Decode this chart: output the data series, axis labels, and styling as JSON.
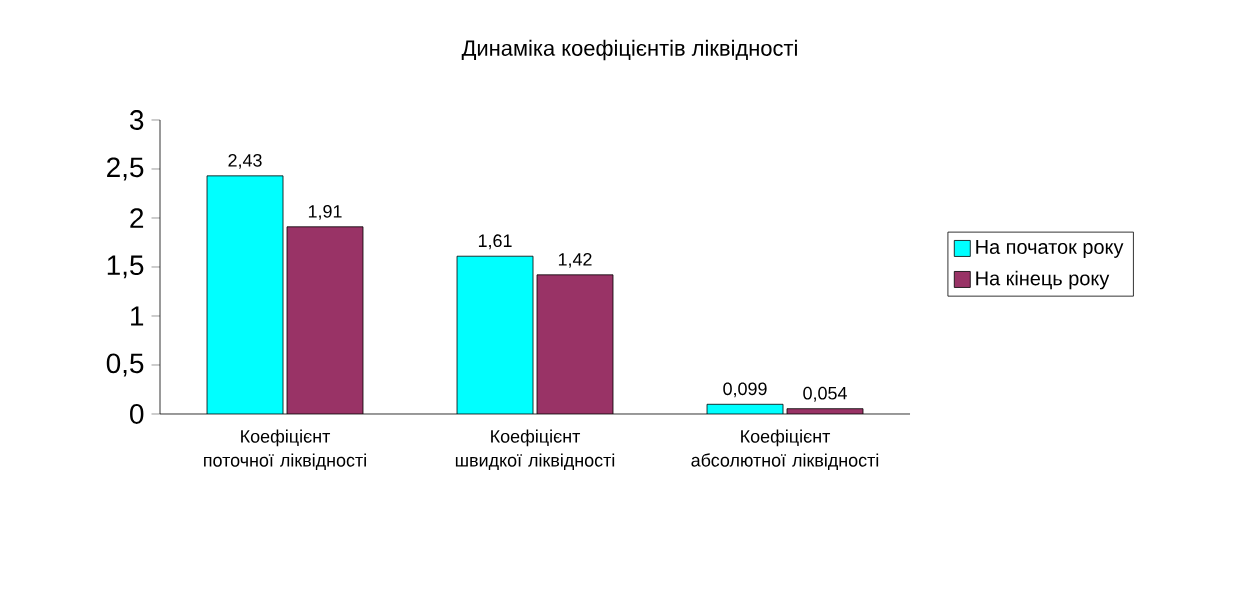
{
  "chart_data": {
    "type": "bar",
    "title": "Динаміка коефіцієнтів ліквідності",
    "categories": [
      "Коефіцієнт поточної ліквідності",
      "Коефіцієнт швидкої ліквідності",
      "Коефіцієнт абсолютної ліквідності"
    ],
    "series": [
      {
        "name": "На початок року",
        "color": "#00ffff",
        "values": [
          2.43,
          1.61,
          0.099
        ],
        "value_labels": [
          "2,43",
          "1,61",
          "0,099"
        ]
      },
      {
        "name": "На кінець року",
        "color": "#993366",
        "values": [
          1.91,
          1.42,
          0.054
        ],
        "value_labels": [
          "1,91",
          "1,42",
          "0,054"
        ]
      }
    ],
    "ylim": [
      0,
      3
    ],
    "yticks": [
      0,
      {
        "value": 0.5,
        "label": "0,5"
      },
      1,
      {
        "value": 1.5,
        "label": "1,5"
      },
      2,
      {
        "value": 2.5,
        "label": "2,5"
      },
      3
    ],
    "legend": "right"
  }
}
